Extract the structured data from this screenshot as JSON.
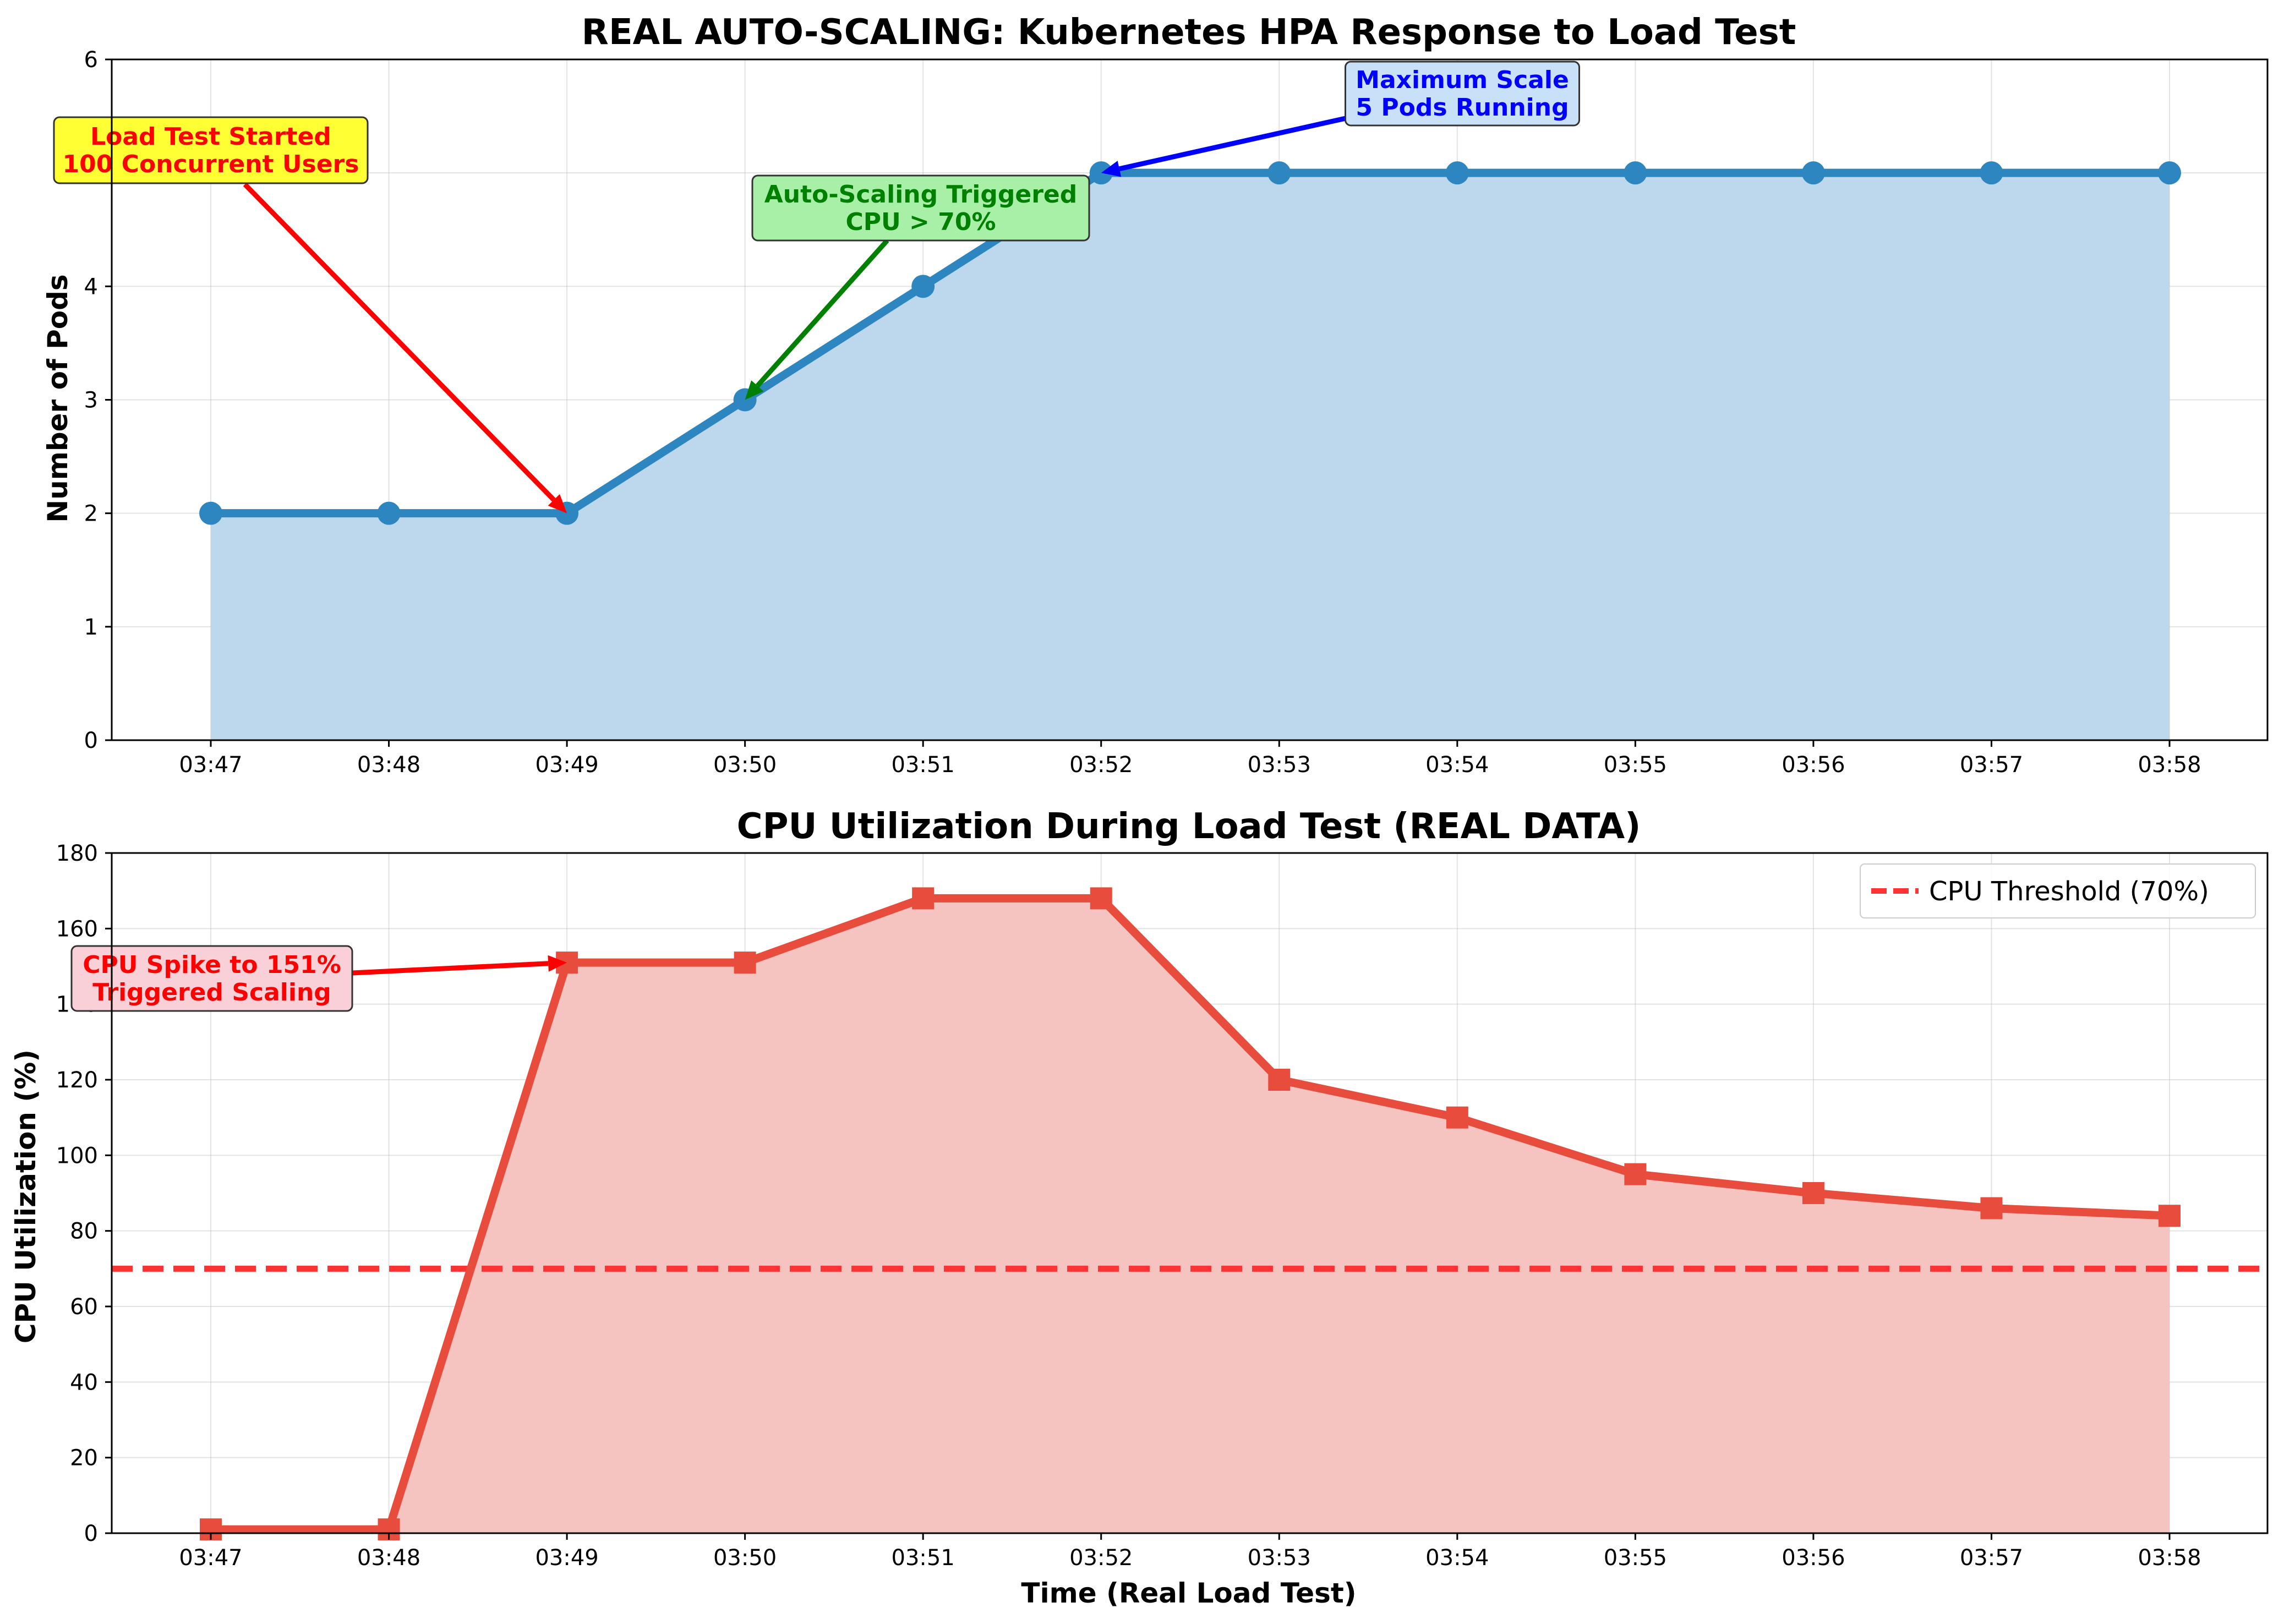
{
  "chart_data": [
    {
      "type": "area",
      "title": "REAL AUTO-SCALING: Kubernetes HPA Response to Load Test",
      "xlabel": "",
      "ylabel": "Number of Pods",
      "categories": [
        "03:47",
        "03:48",
        "03:49",
        "03:50",
        "03:51",
        "03:52",
        "03:53",
        "03:54",
        "03:55",
        "03:56",
        "03:57",
        "03:58"
      ],
      "values": [
        2,
        2,
        2,
        3,
        4,
        5,
        5,
        5,
        5,
        5,
        5,
        5
      ],
      "ylim": [
        0,
        6
      ],
      "yticks": [
        "0",
        "1",
        "2",
        "3",
        "4",
        "5",
        "6"
      ],
      "grid": true,
      "line_color": "#2E86C1",
      "fill_color": "#BDD7EC",
      "marker": "circle",
      "annotations": [
        {
          "lines": [
            "Load Test Started",
            "100 Concurrent Users"
          ],
          "target_index": 2,
          "target_value": 2,
          "text_color": "#FF0000",
          "box_color": "#FFFF33",
          "arrow_color": "#FF0000"
        },
        {
          "lines": [
            "Auto-Scaling Triggered",
            "CPU > 70%"
          ],
          "target_index": 3,
          "target_value": 3,
          "text_color": "#008000",
          "box_color": "#A8F0A8",
          "arrow_color": "#008000"
        },
        {
          "lines": [
            "Maximum Scale",
            "5 Pods Running"
          ],
          "target_index": 5,
          "target_value": 5,
          "text_color": "#0000FF",
          "box_color": "#C8E0F8",
          "arrow_color": "#0000FF"
        }
      ]
    },
    {
      "type": "area",
      "title": "CPU Utilization During Load Test (REAL DATA)",
      "xlabel": "Time (Real Load Test)",
      "ylabel": "CPU Utilization (%)",
      "categories": [
        "03:47",
        "03:48",
        "03:49",
        "03:50",
        "03:51",
        "03:52",
        "03:53",
        "03:54",
        "03:55",
        "03:56",
        "03:57",
        "03:58"
      ],
      "values": [
        1,
        1,
        151,
        151,
        168,
        168,
        120,
        110,
        95,
        90,
        86,
        84
      ],
      "ylim": [
        0,
        180
      ],
      "yticks": [
        "0",
        "20",
        "40",
        "60",
        "80",
        "100",
        "120",
        "140",
        "160",
        "180"
      ],
      "grid": true,
      "line_color": "#E74C3C",
      "fill_color": "#F5C4C0",
      "marker": "square",
      "threshold": {
        "value": 70,
        "label": "CPU Threshold (70%)",
        "color": "#FF3333"
      },
      "legend_position": "top-right",
      "annotations": [
        {
          "lines": [
            "CPU Spike to 151%",
            "Triggered Scaling"
          ],
          "target_index": 2,
          "target_value": 151,
          "text_color": "#FF0000",
          "box_color": "#FAD0D8",
          "arrow_color": "#FF0000"
        }
      ]
    }
  ]
}
